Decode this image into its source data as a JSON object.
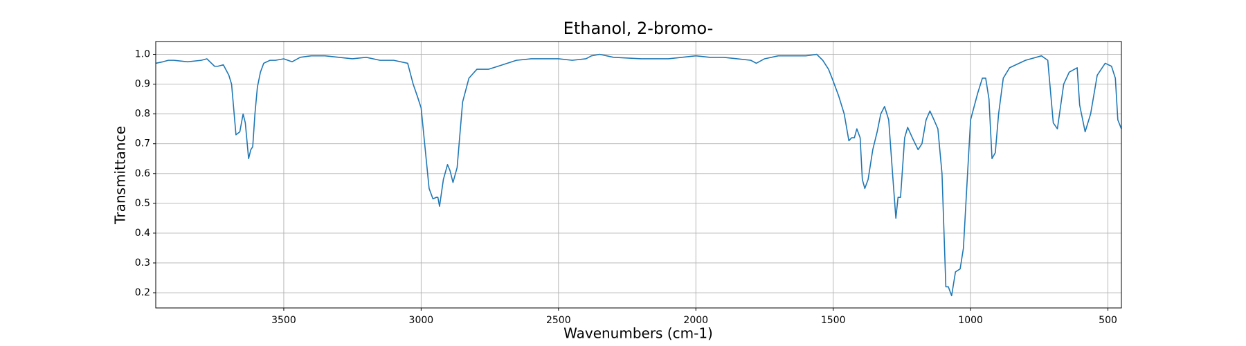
{
  "chart_data": {
    "type": "line",
    "title": "Ethanol, 2-bromo-",
    "x_label": "Wavenumbers (cm-1)",
    "y_label": "Transmittance",
    "x": [
      3966,
      3940,
      3920,
      3900,
      3850,
      3800,
      3780,
      3752,
      3740,
      3720,
      3700,
      3690,
      3674,
      3660,
      3648,
      3640,
      3628,
      3620,
      3613,
      3605,
      3596,
      3585,
      3573,
      3550,
      3530,
      3500,
      3470,
      3440,
      3400,
      3350,
      3300,
      3250,
      3200,
      3150,
      3100,
      3049,
      3029,
      3014,
      3000,
      2985,
      2971,
      2957,
      2945,
      2939,
      2933,
      2919,
      2904,
      2895,
      2884,
      2869,
      2849,
      2826,
      2797,
      2754,
      2720,
      2653,
      2600,
      2500,
      2450,
      2400,
      2380,
      2350,
      2300,
      2200,
      2100,
      2000,
      1950,
      1900,
      1850,
      1800,
      1780,
      1750,
      1700,
      1600,
      1560,
      1538,
      1517,
      1500,
      1480,
      1460,
      1443,
      1433,
      1423,
      1414,
      1402,
      1394,
      1385,
      1373,
      1356,
      1340,
      1327,
      1313,
      1298,
      1284,
      1272,
      1264,
      1255,
      1240,
      1229,
      1212,
      1191,
      1177,
      1162,
      1148,
      1133,
      1119,
      1104,
      1090,
      1081,
      1069,
      1055,
      1038,
      1026,
      1014,
      1000,
      974,
      957,
      945,
      933,
      922,
      910,
      898,
      881,
      858,
      800,
      742,
      719,
      699,
      684,
      661,
      641,
      612,
      603,
      583,
      563,
      539,
      510,
      487,
      473,
      464,
      451
    ],
    "values": [
      0.97,
      0.975,
      0.98,
      0.98,
      0.975,
      0.98,
      0.985,
      0.96,
      0.96,
      0.965,
      0.93,
      0.9,
      0.73,
      0.74,
      0.8,
      0.77,
      0.65,
      0.68,
      0.69,
      0.8,
      0.89,
      0.94,
      0.97,
      0.98,
      0.98,
      0.985,
      0.975,
      0.99,
      0.995,
      0.995,
      0.99,
      0.985,
      0.99,
      0.98,
      0.98,
      0.97,
      0.9,
      0.86,
      0.82,
      0.68,
      0.55,
      0.515,
      0.52,
      0.52,
      0.49,
      0.58,
      0.63,
      0.61,
      0.57,
      0.62,
      0.84,
      0.92,
      0.95,
      0.95,
      0.96,
      0.98,
      0.985,
      0.985,
      0.98,
      0.985,
      0.995,
      1.0,
      0.99,
      0.985,
      0.985,
      0.995,
      0.99,
      0.99,
      0.985,
      0.98,
      0.97,
      0.985,
      0.995,
      0.995,
      1.0,
      0.98,
      0.95,
      0.91,
      0.86,
      0.8,
      0.71,
      0.72,
      0.72,
      0.75,
      0.72,
      0.58,
      0.55,
      0.58,
      0.68,
      0.74,
      0.8,
      0.825,
      0.78,
      0.6,
      0.45,
      0.52,
      0.52,
      0.72,
      0.755,
      0.72,
      0.68,
      0.7,
      0.78,
      0.81,
      0.78,
      0.75,
      0.6,
      0.22,
      0.22,
      0.19,
      0.27,
      0.28,
      0.35,
      0.55,
      0.78,
      0.87,
      0.92,
      0.92,
      0.85,
      0.65,
      0.67,
      0.8,
      0.92,
      0.955,
      0.98,
      0.995,
      0.98,
      0.77,
      0.75,
      0.9,
      0.94,
      0.955,
      0.83,
      0.74,
      0.8,
      0.93,
      0.97,
      0.96,
      0.92,
      0.78,
      0.75
    ],
    "color": "#1f77b4",
    "xlim": [
      3966,
      451
    ],
    "xticks": [
      3500,
      3000,
      2500,
      2000,
      1500,
      1000,
      500
    ],
    "ylim": [
      0.149,
      1.043
    ],
    "yticks": [
      0.2,
      0.3,
      0.4,
      0.5,
      0.6,
      0.7,
      0.8,
      0.9,
      {
        "value": 1,
        "label": "1.0"
      }
    ],
    "grid": true
  }
}
